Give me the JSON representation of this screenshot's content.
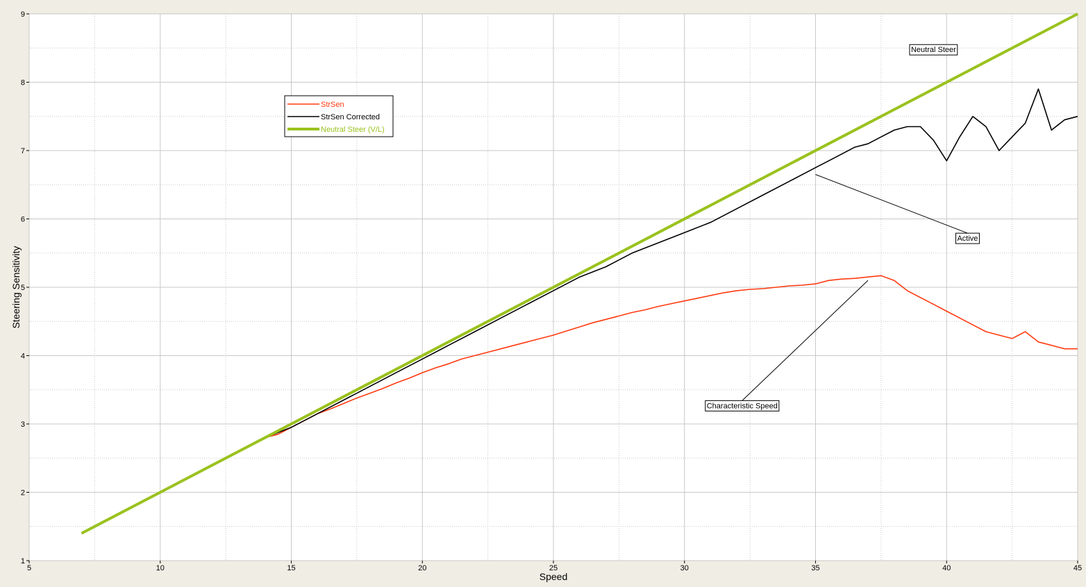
{
  "chart_data": {
    "type": "line",
    "xlabel": "Speed",
    "ylabel": "Steering Sensitivity",
    "xlim": [
      5,
      45
    ],
    "ylim": [
      1,
      9
    ],
    "xticks": [
      5,
      10,
      15,
      20,
      25,
      30,
      35,
      40,
      45
    ],
    "yticks": [
      1,
      2,
      3,
      4,
      5,
      6,
      7,
      8,
      9
    ],
    "grid": true,
    "legend_position": "upper-left",
    "colors": {
      "background": "#f0ede4",
      "plot_background": "#ffffff",
      "grid": "#c8c8c8"
    },
    "series": [
      {
        "name": "StrSen",
        "color": "#ff3a10",
        "x": [
          7.0,
          7.5,
          8.0,
          8.5,
          9.0,
          9.5,
          10.0,
          10.5,
          11.0,
          11.5,
          12.0,
          12.5,
          13.0,
          13.5,
          14.0,
          14.5,
          15.0,
          15.5,
          16.0,
          16.5,
          17.0,
          17.5,
          18.0,
          18.5,
          19.0,
          19.5,
          20.0,
          20.5,
          21.0,
          21.5,
          22.0,
          22.5,
          23.0,
          23.5,
          24.0,
          24.5,
          25.0,
          25.5,
          26.0,
          26.5,
          27.0,
          27.5,
          28.0,
          28.5,
          29.0,
          29.5,
          30.0,
          30.5,
          31.0,
          31.5,
          32.0,
          32.5,
          33.0,
          33.5,
          34.0,
          34.5,
          35.0,
          35.5,
          36.0,
          36.5,
          37.0,
          37.5,
          38.0,
          38.5,
          39.0,
          39.5,
          40.0,
          40.5,
          41.0,
          41.5,
          42.0,
          42.5,
          43.0,
          43.5,
          44.0,
          44.5,
          45.0
        ],
        "y": [
          1.4,
          1.5,
          1.6,
          1.7,
          1.8,
          1.9,
          2.0,
          2.1,
          2.2,
          2.3,
          2.4,
          2.5,
          2.6,
          2.7,
          2.8,
          2.85,
          2.95,
          3.05,
          3.15,
          3.22,
          3.3,
          3.38,
          3.45,
          3.52,
          3.6,
          3.67,
          3.75,
          3.82,
          3.88,
          3.95,
          4.0,
          4.05,
          4.1,
          4.15,
          4.2,
          4.25,
          4.3,
          4.36,
          4.42,
          4.48,
          4.53,
          4.58,
          4.63,
          4.67,
          4.72,
          4.76,
          4.8,
          4.84,
          4.88,
          4.92,
          4.95,
          4.97,
          4.98,
          5.0,
          5.02,
          5.03,
          5.05,
          5.1,
          5.12,
          5.13,
          5.15,
          5.17,
          5.1,
          4.95,
          4.85,
          4.75,
          4.65,
          4.55,
          4.45,
          4.35,
          4.3,
          4.25,
          4.35,
          4.2,
          4.15,
          4.1,
          4.1
        ]
      },
      {
        "name": "StrSen Corrected",
        "color": "#000000",
        "x": [
          7.0,
          8.0,
          9.0,
          10.0,
          11.0,
          12.0,
          13.0,
          14.0,
          15.0,
          16.0,
          17.0,
          18.0,
          19.0,
          20.0,
          21.0,
          22.0,
          23.0,
          24.0,
          25.0,
          26.0,
          27.0,
          28.0,
          29.0,
          30.0,
          31.0,
          32.0,
          33.0,
          34.0,
          35.0,
          35.5,
          36.0,
          36.5,
          37.0,
          37.5,
          38.0,
          38.5,
          39.0,
          39.5,
          40.0,
          40.5,
          41.0,
          41.5,
          42.0,
          42.5,
          43.0,
          43.5,
          44.0,
          44.5,
          45.0
        ],
        "y": [
          1.4,
          1.6,
          1.8,
          2.0,
          2.2,
          2.4,
          2.6,
          2.8,
          2.95,
          3.15,
          3.35,
          3.55,
          3.75,
          3.95,
          4.15,
          4.35,
          4.55,
          4.75,
          4.95,
          5.15,
          5.3,
          5.5,
          5.65,
          5.8,
          5.95,
          6.15,
          6.35,
          6.55,
          6.75,
          6.85,
          6.95,
          7.05,
          7.1,
          7.2,
          7.3,
          7.35,
          7.35,
          7.15,
          6.85,
          7.2,
          7.5,
          7.35,
          7.0,
          7.2,
          7.4,
          7.9,
          7.3,
          7.45,
          7.5
        ]
      },
      {
        "name": "Neutral Steer (V/L)",
        "color": "#9ac21e",
        "x": [
          7.0,
          45.0
        ],
        "y": [
          1.4,
          9.0
        ]
      }
    ],
    "annotations": [
      {
        "text": "Neutral Steer",
        "label_at": [
          39.5,
          8.48
        ]
      },
      {
        "text": "Active",
        "label_at": [
          40.8,
          5.72
        ],
        "points_to": [
          35.0,
          6.65
        ]
      },
      {
        "text": "Characteristic Speed",
        "label_at": [
          32.2,
          3.27
        ],
        "points_to": [
          37.0,
          5.1
        ]
      }
    ]
  }
}
